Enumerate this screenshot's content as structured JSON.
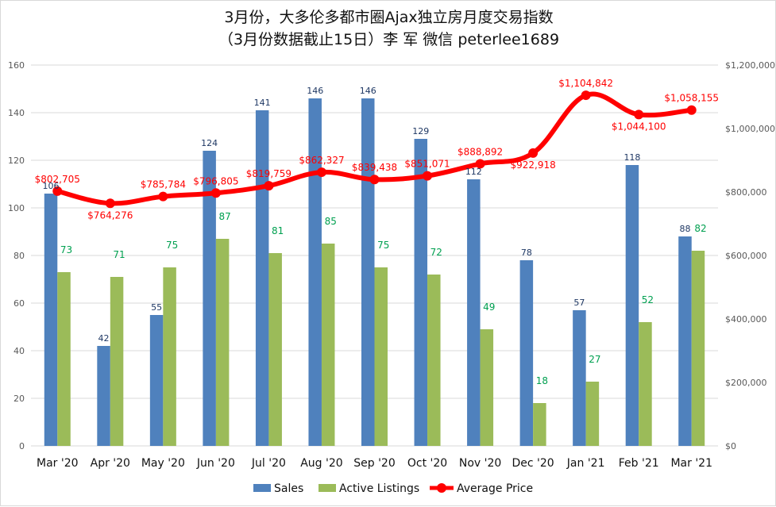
{
  "title": "3月份，大多伦多都市圈Ajax独立房月度交易指数",
  "subtitle": "（3月份数据截止15日）李 军  微信  peterlee1689",
  "colors": {
    "sales": "#4F81BD",
    "active": "#9BBB59",
    "price": "#FF0000",
    "sales_label": "#1F3864",
    "active_label": "#00A050",
    "price_label": "#FF0000",
    "grid": "#D9D9D9"
  },
  "chart_data": {
    "type": "bar",
    "categories": [
      "Mar '20",
      "Apr '20",
      "May '20",
      "Jun '20",
      "Jul '20",
      "Aug '20",
      "Sep '20",
      "Oct '20",
      "Nov '20",
      "Dec '20",
      "Jan '21",
      "Feb '21",
      "Mar '21"
    ],
    "series": [
      {
        "name": "Sales",
        "type": "bar",
        "axis": "left",
        "values": [
          106,
          42,
          55,
          124,
          141,
          146,
          146,
          129,
          112,
          78,
          57,
          118,
          88
        ]
      },
      {
        "name": "Active Listings",
        "type": "bar",
        "axis": "left",
        "values": [
          73,
          71,
          75,
          87,
          81,
          85,
          75,
          72,
          49,
          18,
          27,
          52,
          82
        ]
      },
      {
        "name": "Average Price",
        "type": "line",
        "axis": "right",
        "values": [
          802705,
          764276,
          785784,
          796805,
          819759,
          862327,
          839438,
          851071,
          888892,
          922918,
          1104842,
          1044100,
          1058155
        ],
        "labels": [
          "$802,705",
          "$764,276",
          "$785,784",
          "$796,805",
          "$819,759",
          "$862,327",
          "$839,438",
          "$851,071",
          "$888,892",
          "$922,918",
          "$1,104,842",
          "$1,044,100",
          "$1,058,155"
        ]
      }
    ],
    "ylim": [
      0,
      160
    ],
    "y_ticks": [
      "0",
      "20",
      "40",
      "60",
      "80",
      "100",
      "120",
      "140",
      "160"
    ],
    "y2lim": [
      0,
      1200000
    ],
    "y2_ticks": [
      "$0",
      "$200,000",
      "$400,000",
      "$600,000",
      "$800,000",
      "$1,000,000",
      "$1,200,000"
    ],
    "grid": true,
    "legend_position": "bottom"
  }
}
